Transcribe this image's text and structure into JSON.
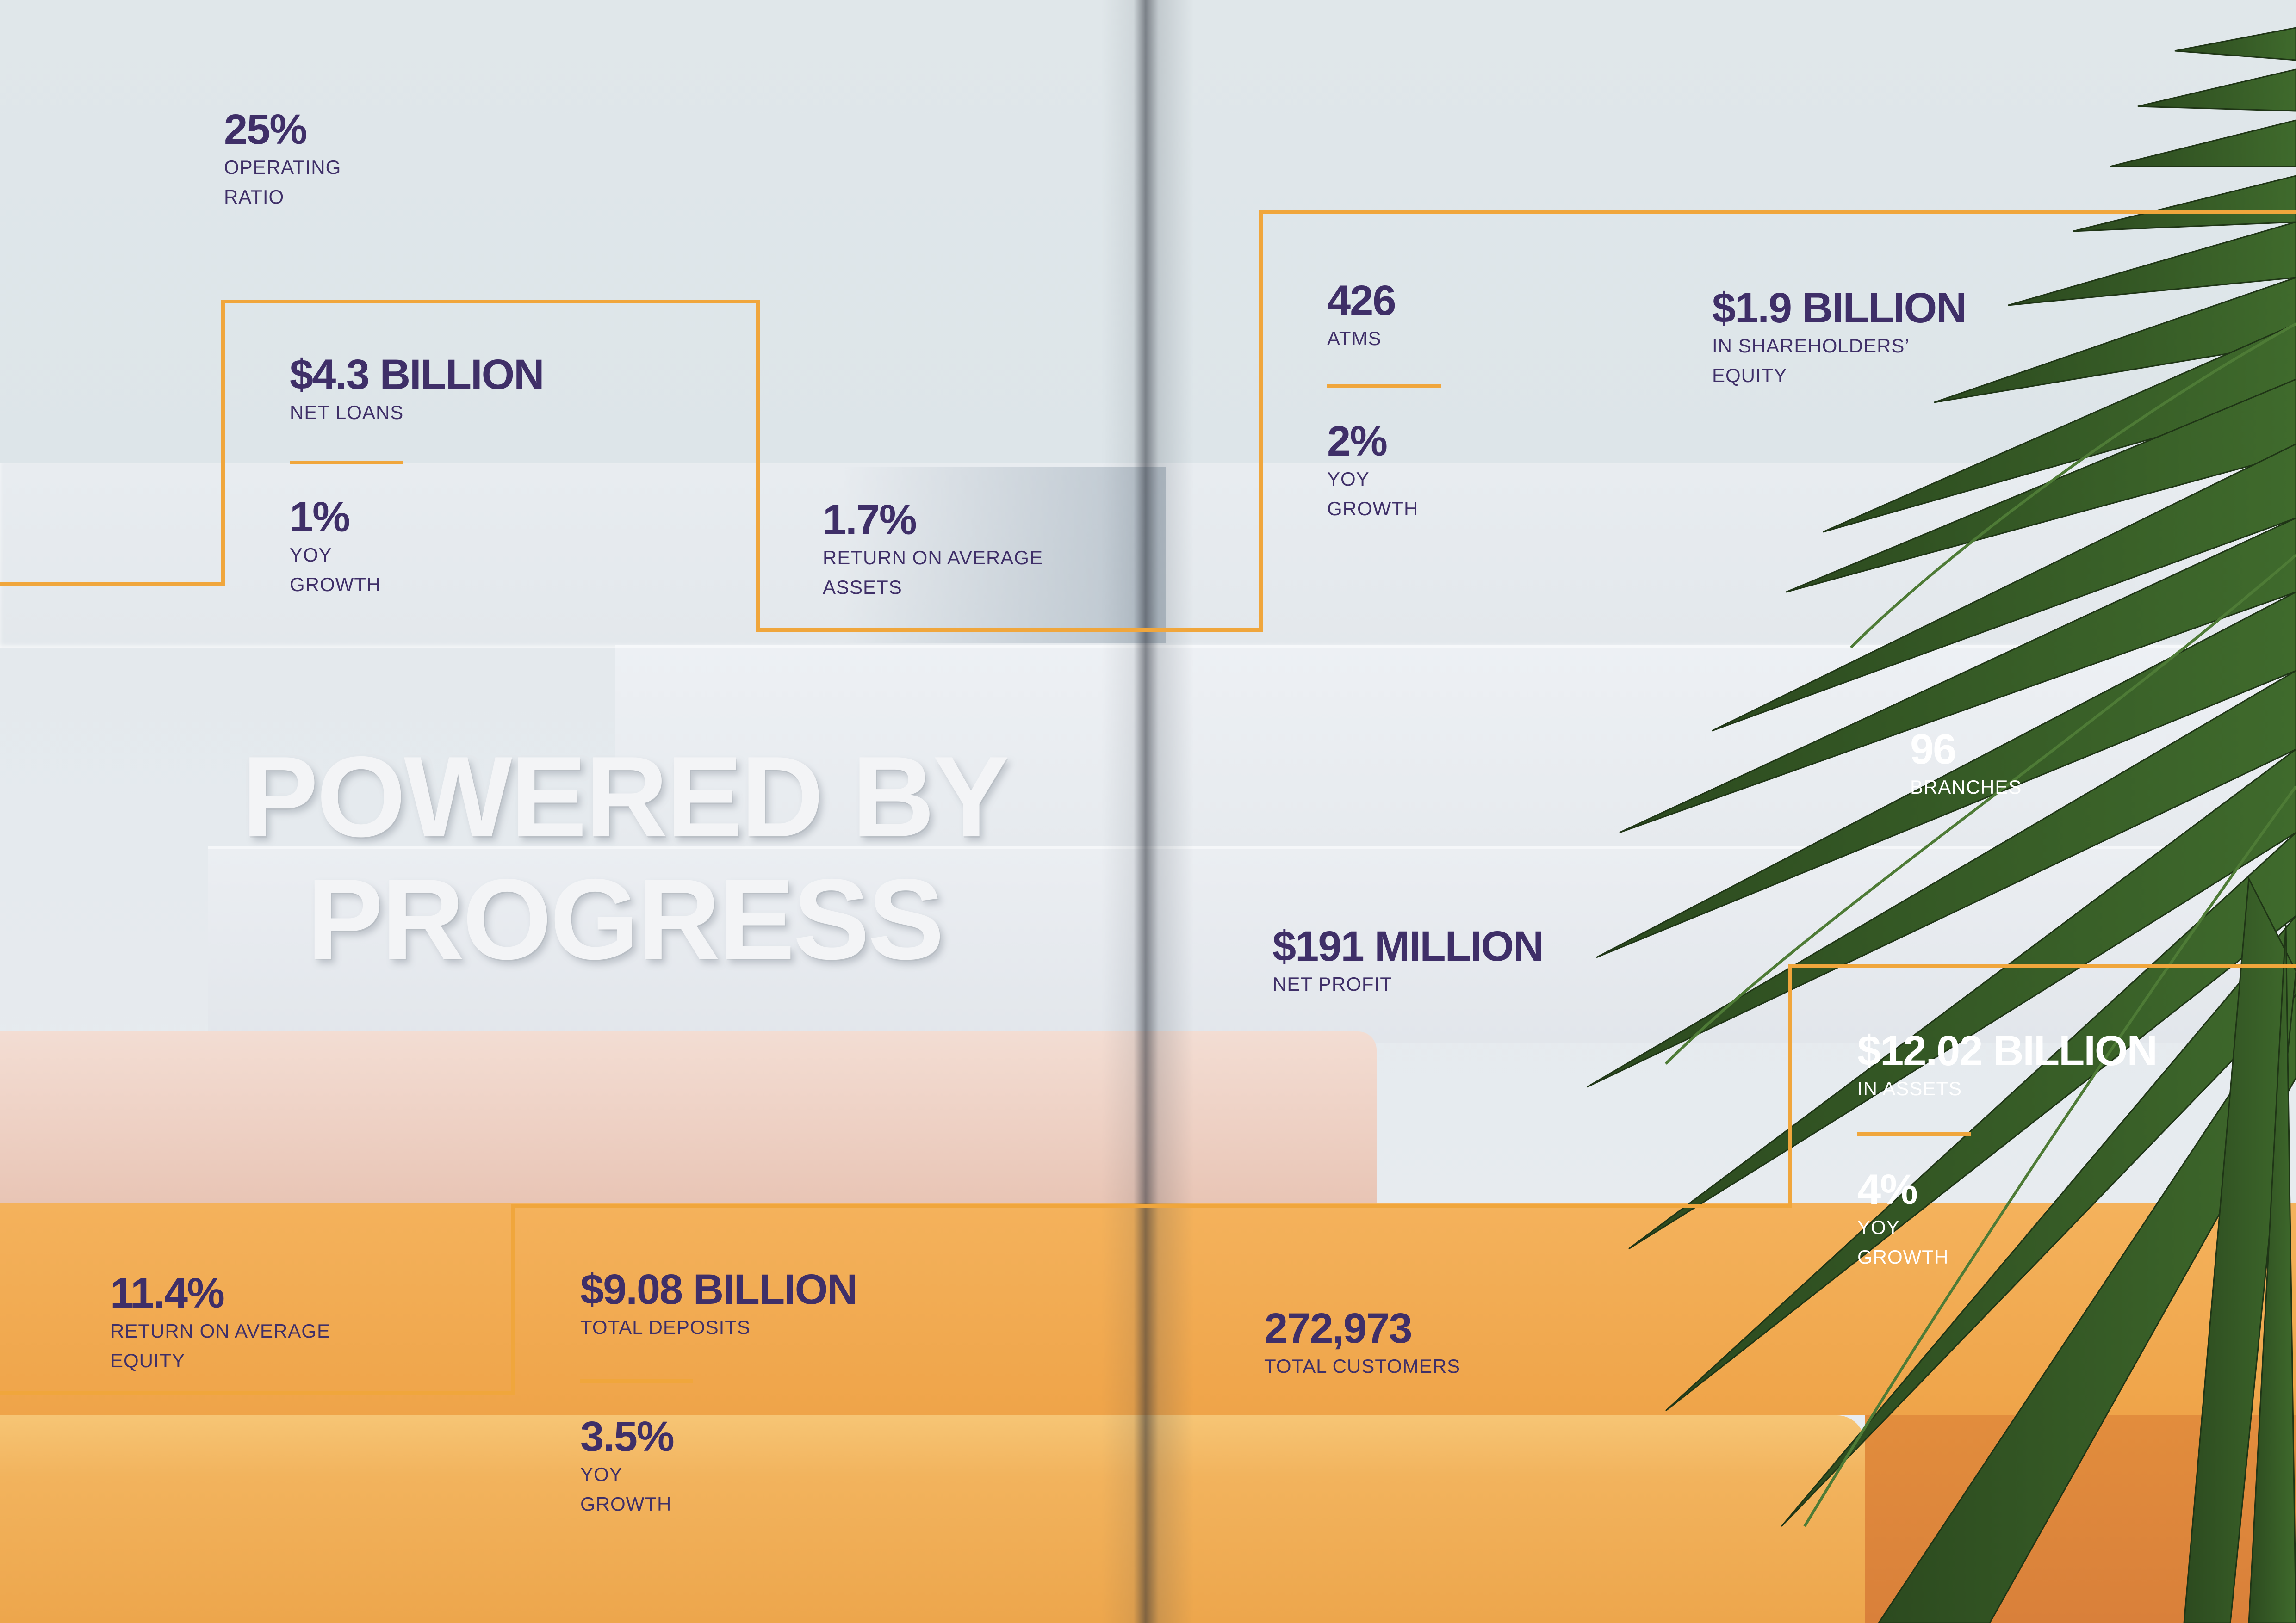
{
  "headline": {
    "line1": "POWERED BY",
    "line2": "PROGRESS"
  },
  "colors": {
    "value_text": "#3f2f68",
    "accent_line": "#f0a63c",
    "orange": "#f2a94f",
    "leaf": "#2e4a24"
  },
  "stats": {
    "operating_ratio": {
      "value": "25%",
      "label1": "OPERATING",
      "label2": "RATIO"
    },
    "net_loans": {
      "value": "$4.3 BILLION",
      "label1": "NET LOANS"
    },
    "net_loans_growth": {
      "value": "1%",
      "label1": "YOY",
      "label2": "GROWTH"
    },
    "roaa": {
      "value": "1.7%",
      "label1": "RETURN ON AVERAGE",
      "label2": "ASSETS"
    },
    "atms": {
      "value": "426",
      "label1": "ATMS"
    },
    "atms_growth": {
      "value": "2%",
      "label1": "YOY",
      "label2": "GROWTH"
    },
    "shareholders_equity": {
      "value": "$1.9 BILLION",
      "label1": "IN SHAREHOLDERS’",
      "label2": "EQUITY"
    },
    "branches": {
      "value": "96",
      "label1": "BRANCHES"
    },
    "net_profit": {
      "value": "$191 MILLION",
      "label1": "NET PROFIT"
    },
    "assets": {
      "value": "$12.02 BILLION",
      "label1": "IN ASSETS"
    },
    "assets_growth": {
      "value": "4%",
      "label1": "YOY",
      "label2": "GROWTH"
    },
    "roae": {
      "value": "11.4%",
      "label1": "RETURN ON AVERAGE",
      "label2": "EQUITY"
    },
    "deposits": {
      "value": "$9.08 BILLION",
      "label1": "TOTAL DEPOSITS"
    },
    "deposits_growth": {
      "value": "3.5%",
      "label1": "YOY",
      "label2": "GROWTH"
    },
    "customers": {
      "value": "272,973",
      "label1": "TOTAL CUSTOMERS"
    }
  }
}
